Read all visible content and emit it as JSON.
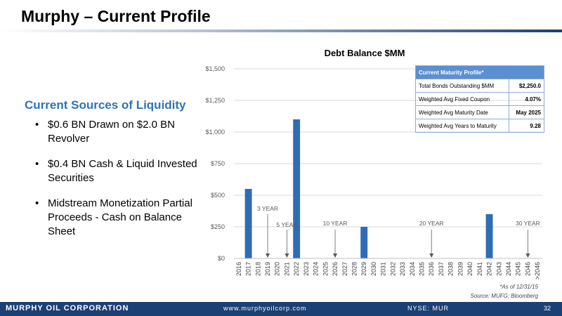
{
  "slide": {
    "title": "Murphy – Current Profile",
    "liquidity_heading": "Current Sources of Liquidity",
    "bullets": [
      "$0.6 BN Drawn on $2.0 BN Revolver",
      "$0.4 BN Cash & Liquid Invested Securities",
      "Midstream Monetization Partial Proceeds - Cash on Balance Sheet"
    ],
    "note_asof": "*As of 12/31/15",
    "note_source": "Source:  MUFG; Bloomberg"
  },
  "maturity_table": {
    "header": "Current Maturity Profile*",
    "rows": [
      {
        "label": "Total Bonds Outstanding $MM",
        "value": "$2,250.0"
      },
      {
        "label": "Weighted Avg Fixed Coupon",
        "value": "4.07%"
      },
      {
        "label": "Weighted Avg Maturity Date",
        "value": "May 2025"
      },
      {
        "label": "Weighted Avg Years to Maturity",
        "value": "9.28"
      }
    ]
  },
  "footer": {
    "company": "MURPHY OIL CORPORATION",
    "url": "www.murphyoilcorp.com",
    "ticker": "NYSE: MUR",
    "page": "32"
  },
  "colors": {
    "bar": "#2e6db4",
    "heading": "#2e74b5",
    "footer_bg": "#1c3f74"
  },
  "chart_data": {
    "type": "bar",
    "title": "Debt Balance  $MM",
    "categories": [
      "2016",
      "2017",
      "2018",
      "2019",
      "2020",
      "2021",
      "2022",
      "2023",
      "2024",
      "2025",
      "2026",
      "2027",
      "2028",
      "2029",
      "2030",
      "2031",
      "2032",
      "2033",
      "2034",
      "2035",
      "2036",
      "2037",
      "2038",
      "2039",
      "2040",
      "2041",
      "2042",
      "2043",
      "2044",
      "2045",
      "2046",
      ">2046"
    ],
    "values": [
      0,
      550,
      0,
      0,
      0,
      0,
      1100,
      0,
      0,
      0,
      0,
      0,
      0,
      250,
      0,
      0,
      0,
      0,
      0,
      0,
      0,
      0,
      0,
      0,
      0,
      0,
      350,
      0,
      0,
      0,
      0,
      0
    ],
    "ylim": [
      0,
      1500
    ],
    "yticks": [
      "$0",
      "$250",
      "$500",
      "$750",
      "$1,000",
      "$1,250",
      "$1,500"
    ],
    "ytick_values": [
      0,
      250,
      500,
      750,
      1000,
      1250,
      1500
    ],
    "grid": true,
    "annotations": [
      {
        "label": "3 YEAR",
        "category": "2019"
      },
      {
        "label": "5 YEAR",
        "category": "2021"
      },
      {
        "label": "10 YEAR",
        "category": "2026"
      },
      {
        "label": "20 YEAR",
        "category": "2036"
      },
      {
        "label": "30 YEAR",
        "category": "2046"
      }
    ]
  }
}
